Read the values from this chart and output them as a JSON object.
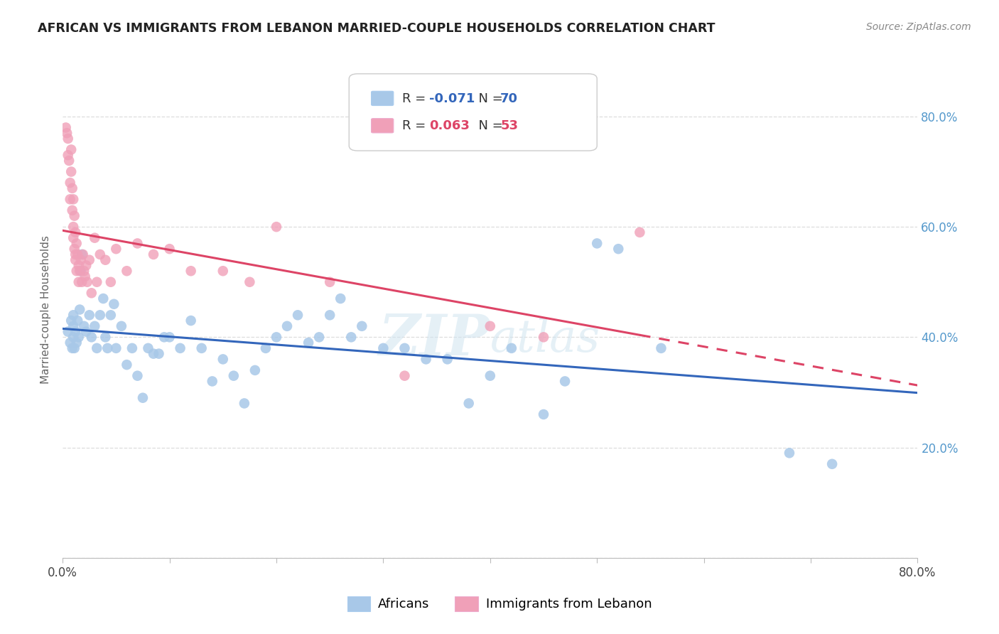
{
  "title": "AFRICAN VS IMMIGRANTS FROM LEBANON MARRIED-COUPLE HOUSEHOLDS CORRELATION CHART",
  "source": "Source: ZipAtlas.com",
  "ylabel": "Married-couple Households",
  "right_yticks": [
    "20.0%",
    "40.0%",
    "60.0%",
    "80.0%"
  ],
  "right_ytick_vals": [
    0.2,
    0.4,
    0.6,
    0.8
  ],
  "legend_R_africans": "-0.071",
  "legend_N_africans": "70",
  "legend_R_lebanon": "0.063",
  "legend_N_lebanon": "53",
  "legend_label_africans": "Africans",
  "legend_label_lebanon": "Immigrants from Lebanon",
  "color_africans": "#a8c8e8",
  "color_lebanon": "#f0a0b8",
  "color_line_africans": "#3366bb",
  "color_line_lebanon": "#dd4466",
  "africans_x": [
    0.005,
    0.007,
    0.008,
    0.009,
    0.01,
    0.01,
    0.01,
    0.011,
    0.012,
    0.013,
    0.014,
    0.015,
    0.016,
    0.017,
    0.018,
    0.02,
    0.022,
    0.025,
    0.027,
    0.03,
    0.032,
    0.035,
    0.038,
    0.04,
    0.042,
    0.045,
    0.048,
    0.05,
    0.055,
    0.06,
    0.065,
    0.07,
    0.075,
    0.08,
    0.085,
    0.09,
    0.095,
    0.1,
    0.11,
    0.12,
    0.13,
    0.14,
    0.15,
    0.16,
    0.17,
    0.18,
    0.19,
    0.2,
    0.21,
    0.22,
    0.23,
    0.24,
    0.25,
    0.26,
    0.27,
    0.28,
    0.3,
    0.32,
    0.34,
    0.36,
    0.38,
    0.4,
    0.42,
    0.45,
    0.47,
    0.5,
    0.52,
    0.56,
    0.68,
    0.72
  ],
  "africans_y": [
    0.41,
    0.39,
    0.43,
    0.38,
    0.42,
    0.4,
    0.44,
    0.38,
    0.41,
    0.39,
    0.43,
    0.4,
    0.45,
    0.52,
    0.55,
    0.42,
    0.41,
    0.44,
    0.4,
    0.42,
    0.38,
    0.44,
    0.47,
    0.4,
    0.38,
    0.44,
    0.46,
    0.38,
    0.42,
    0.35,
    0.38,
    0.33,
    0.29,
    0.38,
    0.37,
    0.37,
    0.4,
    0.4,
    0.38,
    0.43,
    0.38,
    0.32,
    0.36,
    0.33,
    0.28,
    0.34,
    0.38,
    0.4,
    0.42,
    0.44,
    0.39,
    0.4,
    0.44,
    0.47,
    0.4,
    0.42,
    0.38,
    0.38,
    0.36,
    0.36,
    0.28,
    0.33,
    0.38,
    0.26,
    0.32,
    0.57,
    0.56,
    0.38,
    0.19,
    0.17
  ],
  "lebanon_x": [
    0.003,
    0.004,
    0.005,
    0.005,
    0.006,
    0.007,
    0.007,
    0.008,
    0.008,
    0.009,
    0.009,
    0.01,
    0.01,
    0.01,
    0.011,
    0.011,
    0.012,
    0.012,
    0.012,
    0.013,
    0.013,
    0.014,
    0.015,
    0.015,
    0.016,
    0.017,
    0.018,
    0.019,
    0.02,
    0.021,
    0.022,
    0.023,
    0.025,
    0.027,
    0.03,
    0.032,
    0.035,
    0.04,
    0.045,
    0.05,
    0.06,
    0.07,
    0.085,
    0.1,
    0.12,
    0.15,
    0.175,
    0.2,
    0.25,
    0.32,
    0.4,
    0.45,
    0.54
  ],
  "lebanon_y": [
    0.78,
    0.77,
    0.76,
    0.73,
    0.72,
    0.68,
    0.65,
    0.74,
    0.7,
    0.67,
    0.63,
    0.6,
    0.65,
    0.58,
    0.56,
    0.62,
    0.55,
    0.59,
    0.54,
    0.57,
    0.52,
    0.55,
    0.53,
    0.5,
    0.52,
    0.54,
    0.5,
    0.55,
    0.52,
    0.51,
    0.53,
    0.5,
    0.54,
    0.48,
    0.58,
    0.5,
    0.55,
    0.54,
    0.5,
    0.56,
    0.52,
    0.57,
    0.55,
    0.56,
    0.52,
    0.52,
    0.5,
    0.6,
    0.5,
    0.33,
    0.42,
    0.4,
    0.59
  ],
  "xlim": [
    0.0,
    0.8
  ],
  "ylim": [
    0.0,
    0.9
  ],
  "grid_color": "#dddddd",
  "watermark_line1": "ZIP",
  "watermark_line2": "atlas",
  "background_color": "#ffffff"
}
